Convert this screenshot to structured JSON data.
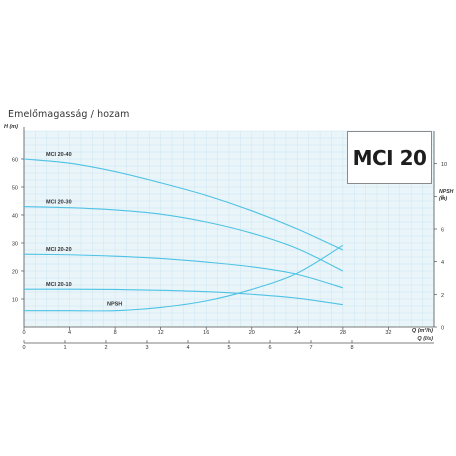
{
  "header": {
    "title": "Emelőmagasság / hozam",
    "badge": "MCI 20"
  },
  "chart_data": {
    "type": "line",
    "x_q_m3h": {
      "label": "Q (m³/h)",
      "ticks": [
        0,
        4,
        8,
        12,
        16,
        20,
        24,
        28,
        32
      ],
      "range": [
        0,
        36
      ]
    },
    "x_q_ls": {
      "label": "Q (l/s)",
      "ticks": [
        0,
        1,
        2,
        3,
        4,
        5,
        6,
        7,
        8
      ],
      "range": [
        0,
        10
      ]
    },
    "y_head": {
      "label": "H (m)",
      "ticks": [
        10,
        20,
        30,
        40,
        50,
        60
      ],
      "range": [
        0,
        70
      ]
    },
    "y_npsh": {
      "label": "NPSH (m)",
      "ticks": [
        0,
        2,
        4,
        6,
        8,
        10
      ],
      "range": [
        0,
        12
      ]
    },
    "grid": true,
    "colors": {
      "curve": "#4ec2e4",
      "grid": "#c9e3ef",
      "plot_bg": "#eaf5fa",
      "axis": "#555555",
      "text": "#333333"
    },
    "series": [
      {
        "name": "MCI 20-40",
        "axis": "head",
        "x": [
          0,
          4,
          8,
          12,
          16,
          20,
          24,
          28
        ],
        "y": [
          60,
          58.5,
          55.5,
          51.5,
          47,
          41.5,
          35,
          27.5
        ]
      },
      {
        "name": "MCI 20-30",
        "axis": "head",
        "x": [
          0,
          4,
          8,
          12,
          16,
          20,
          24,
          28
        ],
        "y": [
          43,
          42.6,
          41.8,
          40.3,
          37.5,
          33.5,
          28,
          20
        ]
      },
      {
        "name": "MCI 20-20",
        "axis": "head",
        "x": [
          0,
          4,
          8,
          12,
          16,
          20,
          24,
          28
        ],
        "y": [
          26,
          25.8,
          25.3,
          24.5,
          23.2,
          21.5,
          18.8,
          14
        ]
      },
      {
        "name": "MCI 20-10",
        "axis": "head",
        "x": [
          0,
          4,
          8,
          12,
          16,
          20,
          24,
          28
        ],
        "y": [
          13.5,
          13.5,
          13.4,
          13.1,
          12.6,
          11.7,
          10.3,
          8
        ]
      },
      {
        "name": "NPSH",
        "axis": "npsh",
        "x": [
          0,
          4,
          8,
          12,
          16,
          20,
          24,
          28
        ],
        "y": [
          1,
          1,
          1,
          1.2,
          1.6,
          2.3,
          3.3,
          5
        ]
      }
    ]
  }
}
